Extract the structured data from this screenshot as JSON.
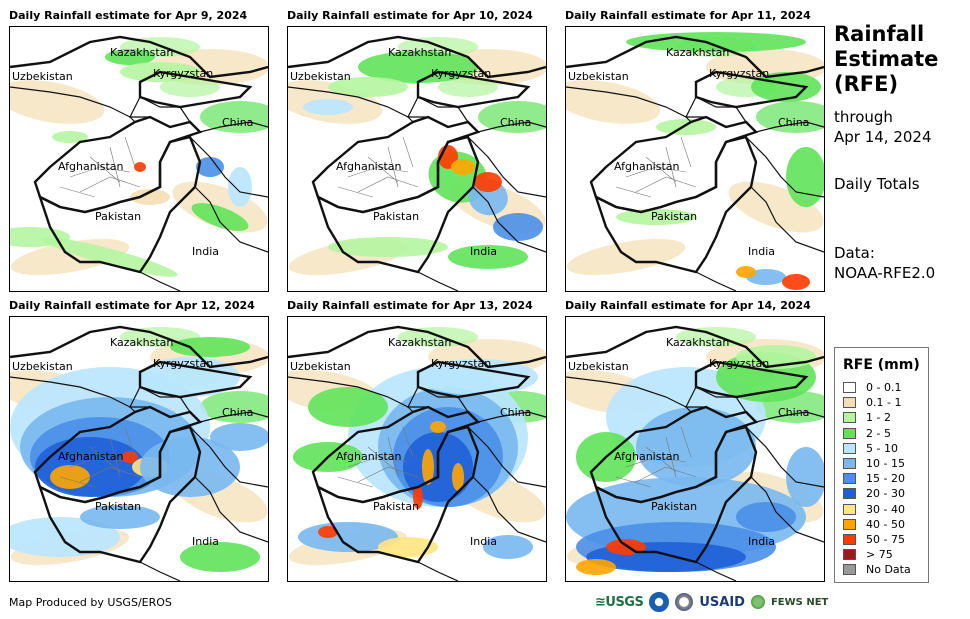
{
  "panels": [
    {
      "title": "Daily Rainfall estimate for Apr 9, 2024",
      "rain": "light"
    },
    {
      "title": "Daily Rainfall estimate for Apr 10, 2024",
      "rain": "east"
    },
    {
      "title": "Daily Rainfall estimate for Apr 11, 2024",
      "rain": "sparse"
    },
    {
      "title": "Daily Rainfall estimate for Apr 12, 2024",
      "rain": "heavy-west"
    },
    {
      "title": "Daily Rainfall estimate for Apr 13, 2024",
      "rain": "heavy-east"
    },
    {
      "title": "Daily Rainfall estimate for Apr 14, 2024",
      "rain": "heavy-south"
    }
  ],
  "map_labels": {
    "kazakhstan": "Kazakhstan",
    "uzbekistan": "Uzbekistan",
    "kyrgyzstan": "Kyrgyzstan",
    "china": "China",
    "afghanistan": "Afghanistan",
    "pakistan": "Pakistan",
    "india": "India"
  },
  "sidebar": {
    "title_line1": "Rainfall",
    "title_line2": "Estimate",
    "title_line3": "(RFE)",
    "through": "through",
    "date": "Apr 14, 2024",
    "daily": "Daily Totals",
    "data_label": "Data:",
    "data_source": "NOAA-RFE2.0"
  },
  "legend": {
    "title": "RFE (mm)",
    "items": [
      {
        "label": "0 - 0.1",
        "color": "#ffffff"
      },
      {
        "label": "0.1 - 1",
        "color": "#f5deb3"
      },
      {
        "label": "1 - 2",
        "color": "#b4f5a0"
      },
      {
        "label": "2 - 5",
        "color": "#5fe35a"
      },
      {
        "label": "5 - 10",
        "color": "#b8e6ff"
      },
      {
        "label": "10 - 15",
        "color": "#78b8f0"
      },
      {
        "label": "15 - 20",
        "color": "#4a8fe8"
      },
      {
        "label": "20 - 30",
        "color": "#1f5fd8"
      },
      {
        "label": "30 - 40",
        "color": "#ffe680"
      },
      {
        "label": "40 - 50",
        "color": "#ffa500"
      },
      {
        "label": "50 - 75",
        "color": "#ff3a00"
      },
      {
        "label": "> 75",
        "color": "#a01818"
      },
      {
        "label": "No Data",
        "color": "#999999"
      }
    ]
  },
  "footer": {
    "credit": "Map Produced by USGS/EROS"
  },
  "logos": {
    "usgs": "≊USGS",
    "usaid": "USAID",
    "fews": "FEWS NET"
  }
}
